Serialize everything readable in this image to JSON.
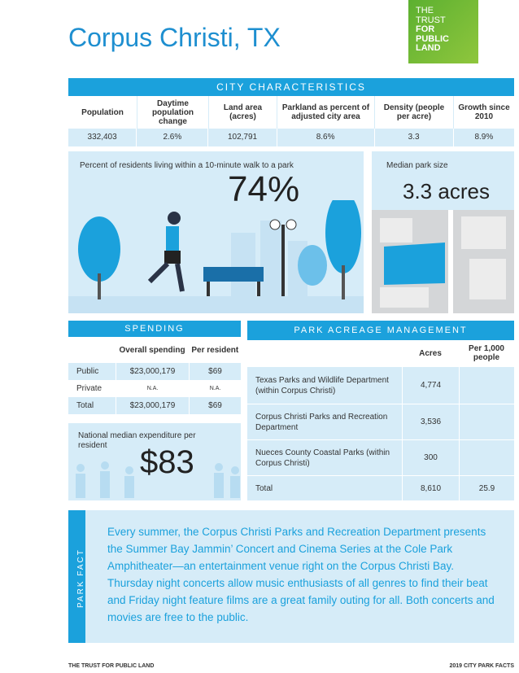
{
  "title": "Corpus Christi, TX",
  "logo": [
    "THE",
    "TRUST",
    "FOR",
    "PUBLIC",
    "LAND"
  ],
  "city_characteristics": {
    "title": "CITY CHARACTERISTICS",
    "headers": [
      "Population",
      "Daytime population change",
      "Land area (acres)",
      "Parkland as percent of adjusted city area",
      "Density (people per acre)",
      "Growth since 2010"
    ],
    "values": [
      "332,403",
      "2.6%",
      "102,791",
      "8.6%",
      "3.3",
      "8.9%"
    ]
  },
  "walk": {
    "label": "Percent of residents living within a 10-minute walk to a park",
    "value": "74%"
  },
  "median": {
    "label": "Median park size",
    "value": "3.3 acres"
  },
  "spending": {
    "title": "SPENDING",
    "headers": [
      "Overall spending",
      "Per resident"
    ],
    "rows": [
      [
        "Public",
        "$23,000,179",
        "$69"
      ],
      [
        "Private",
        "N.A.",
        "N.A."
      ],
      [
        "Total",
        "$23,000,179",
        "$69"
      ]
    ]
  },
  "national": {
    "label": "National median expenditure per resident",
    "value": "$83"
  },
  "acreage": {
    "title": "PARK ACREAGE MANAGEMENT",
    "headers": [
      "Acres",
      "Per 1,000 people"
    ],
    "rows": [
      [
        "Texas Parks and Wildlife Department (within Corpus Christi)",
        "4,774"
      ],
      [
        "Corpus Christi Parks and Recreation Department",
        "3,536"
      ],
      [
        "Nueces County Coastal Parks (within Corpus Christi)",
        "300"
      ],
      [
        "Total",
        "8,610",
        "25.9"
      ]
    ]
  },
  "park_fact": {
    "label": "PARK FACT",
    "text": "Every summer, the Corpus Christi Parks and Recreation Department presents the Summer Bay Jammin’ Concert and Cinema Series at the Cole Park Amphitheater—an entertainment venue right on the Corpus Christi Bay. Thursday night concerts allow music enthusiasts of all genres to find their beat and Friday night feature films are a great family outing for all. Both concerts and movies are free to the public."
  },
  "footer": {
    "left": "THE TRUST FOR PUBLIC LAND",
    "right": "2019 CITY PARK FACTS"
  }
}
